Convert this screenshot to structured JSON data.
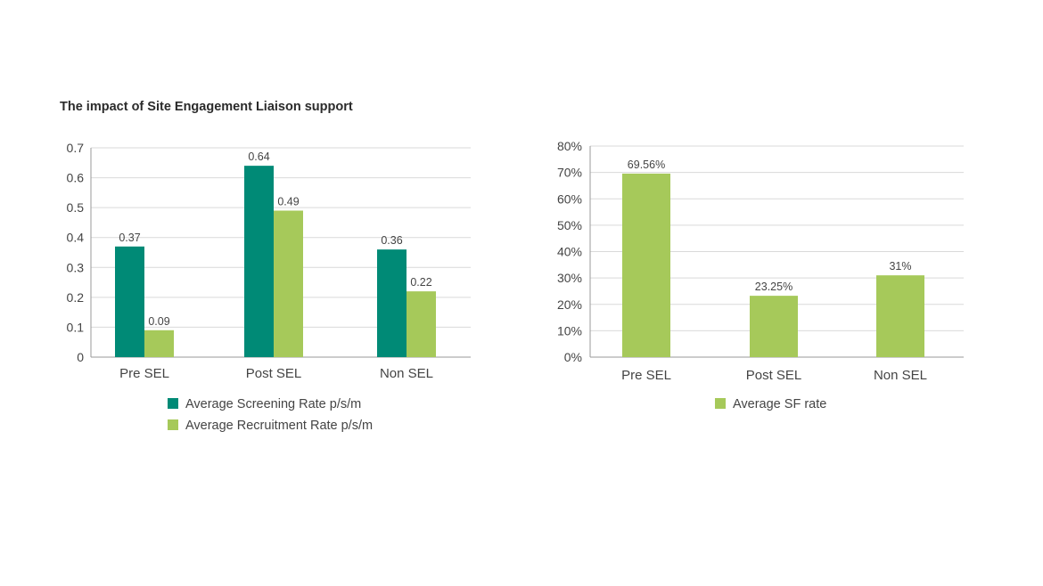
{
  "title": "The impact of Site Engagement Liaison support",
  "colors": {
    "screening": "#008a76",
    "recruitment": "#a6c95a",
    "sf": "#a6c95a",
    "grid": "#d9d9d9",
    "axis": "#9a9a9a"
  },
  "chart_data": [
    {
      "type": "bar",
      "categories": [
        "Pre SEL",
        "Post SEL",
        "Non SEL"
      ],
      "series": [
        {
          "name": "Average Screening Rate p/s/m",
          "values": [
            0.37,
            0.64,
            0.36
          ],
          "labels": [
            "0.37",
            "0.64",
            "0.36"
          ]
        },
        {
          "name": "Average Recruitment Rate p/s/m",
          "values": [
            0.09,
            0.49,
            0.22
          ],
          "labels": [
            "0.09",
            "0.49",
            "0.22"
          ]
        }
      ],
      "ylim": [
        0,
        0.7
      ],
      "yticks": [
        0,
        0.1,
        0.2,
        0.3,
        0.4,
        0.5,
        0.6,
        0.7
      ],
      "ytick_labels": [
        "0",
        "0.1",
        "0.2",
        "0.3",
        "0.4",
        "0.5",
        "0.6",
        "0.7"
      ],
      "legend": "bottom"
    },
    {
      "type": "bar",
      "categories": [
        "Pre SEL",
        "Post SEL",
        "Non SEL"
      ],
      "series": [
        {
          "name": "Average SF rate",
          "values": [
            69.56,
            23.25,
            31
          ],
          "labels": [
            "69.56%",
            "23.25%",
            "31%"
          ]
        }
      ],
      "ylim": [
        0,
        80
      ],
      "yticks": [
        0,
        10,
        20,
        30,
        40,
        50,
        60,
        70,
        80
      ],
      "ytick_labels": [
        "0%",
        "10%",
        "20%",
        "30%",
        "40%",
        "50%",
        "60%",
        "70%",
        "80%"
      ],
      "legend": "bottom"
    }
  ]
}
